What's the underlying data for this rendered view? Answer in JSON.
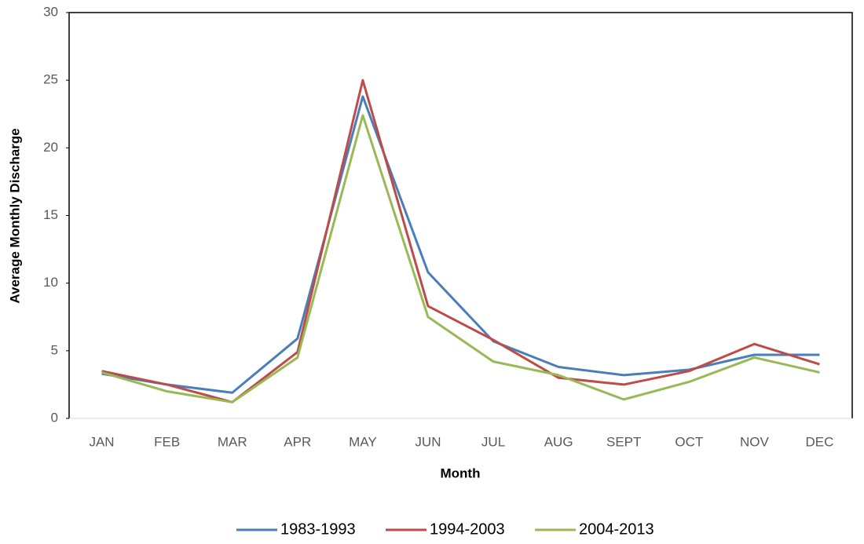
{
  "chart_data": {
    "type": "line",
    "x_label": "Month",
    "y_label": "Average Monthly  Discharge",
    "categories": [
      "JAN",
      "FEB",
      "MAR",
      "APR",
      "MAY",
      "JUN",
      "JUL",
      "AUG",
      "SEPT",
      "OCT",
      "NOV",
      "DEC"
    ],
    "series": [
      {
        "name": "1983-1993",
        "color": "#4a7ebb",
        "values": [
          3.3,
          2.5,
          1.9,
          5.9,
          23.8,
          10.8,
          5.7,
          3.8,
          3.2,
          3.6,
          4.7,
          4.7
        ]
      },
      {
        "name": "1994-2003",
        "color": "#be4b48",
        "values": [
          3.5,
          2.5,
          1.2,
          4.9,
          25.0,
          8.3,
          5.8,
          3.0,
          2.5,
          3.5,
          5.5,
          4.0
        ]
      },
      {
        "name": "2004-2013",
        "color": "#98b954",
        "values": [
          3.4,
          2.0,
          1.2,
          4.5,
          22.4,
          7.5,
          4.2,
          3.2,
          1.4,
          2.7,
          4.5,
          3.4
        ]
      }
    ],
    "ylim": [
      0,
      30
    ],
    "yticks": [
      0,
      5,
      10,
      15,
      20,
      25,
      30
    ],
    "grid": false,
    "legend": "bottom"
  }
}
